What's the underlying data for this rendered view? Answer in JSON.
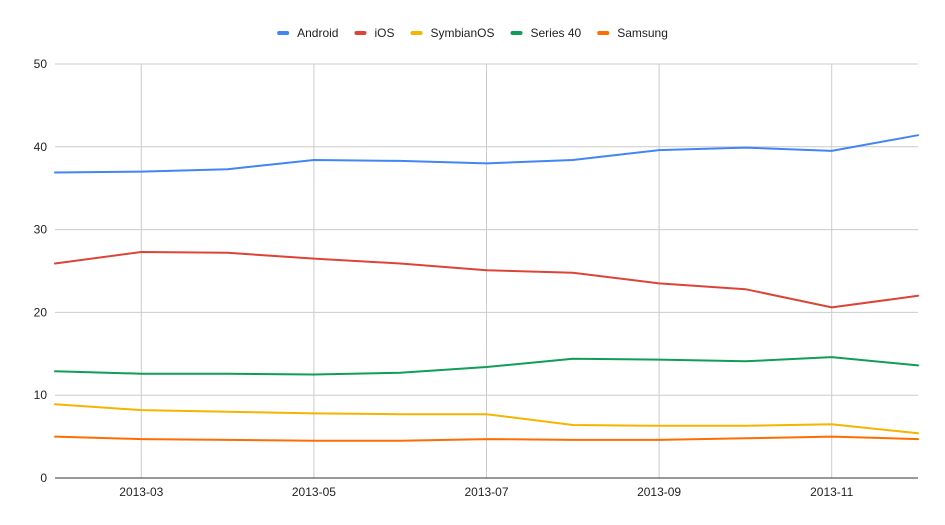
{
  "chart_data": {
    "type": "line",
    "title": "",
    "xlabel": "",
    "ylabel": "",
    "x": [
      "2013-02",
      "2013-03",
      "2013-04",
      "2013-05",
      "2013-06",
      "2013-07",
      "2013-08",
      "2013-09",
      "2013-10",
      "2013-11",
      "2013-12"
    ],
    "x_tick_labels": [
      "2013-03",
      "2013-05",
      "2013-07",
      "2013-09",
      "2013-11"
    ],
    "ylim": [
      0,
      50
    ],
    "y_ticks": [
      0,
      10,
      20,
      30,
      40,
      50
    ],
    "grid": true,
    "legend_position": "top-center",
    "series": [
      {
        "name": "Android",
        "color": "#4285F4",
        "values": [
          36.9,
          37.0,
          37.3,
          38.4,
          38.3,
          38.0,
          38.4,
          39.6,
          39.9,
          39.5,
          41.4
        ]
      },
      {
        "name": "iOS",
        "color": "#DB4437",
        "values": [
          25.9,
          27.3,
          27.2,
          26.5,
          25.9,
          25.1,
          24.8,
          23.5,
          22.8,
          20.6,
          22.0
        ]
      },
      {
        "name": "SymbianOS",
        "color": "#F4B400",
        "values": [
          8.9,
          8.2,
          8.0,
          7.8,
          7.7,
          7.7,
          6.4,
          6.3,
          6.3,
          6.5,
          5.4
        ]
      },
      {
        "name": "Series 40",
        "color": "#0F9D58",
        "values": [
          12.9,
          12.6,
          12.6,
          12.5,
          12.7,
          13.4,
          14.4,
          14.3,
          14.1,
          14.6,
          13.6
        ]
      },
      {
        "name": "Samsung",
        "color": "#FF6D00",
        "values": [
          5.0,
          4.7,
          4.6,
          4.5,
          4.5,
          4.7,
          4.6,
          4.6,
          4.8,
          5.0,
          4.7
        ]
      }
    ]
  }
}
